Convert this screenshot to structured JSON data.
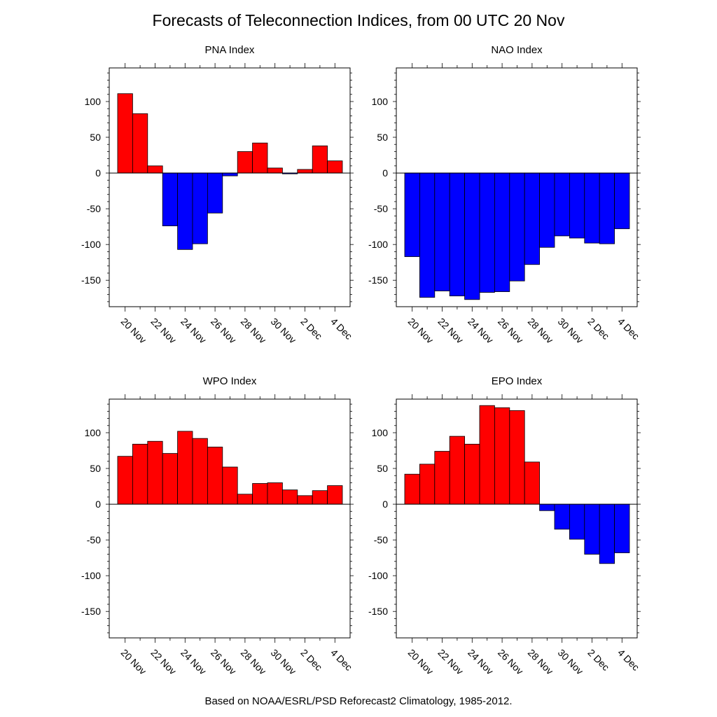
{
  "title": "Forecasts of Teleconnection Indices, from 00 UTC 20 Nov",
  "footer": "Based on NOAA/ESRL/PSD Reforecast2 Climatology, 1985-2012.",
  "colors": {
    "positive": "#ff0000",
    "negative": "#0000ff",
    "axis": "#000000"
  },
  "chart_data": [
    {
      "type": "bar",
      "title": "PNA Index",
      "categories": [
        "20 Nov",
        "21 Nov",
        "22 Nov",
        "23 Nov",
        "24 Nov",
        "25 Nov",
        "26 Nov",
        "27 Nov",
        "28 Nov",
        "29 Nov",
        "30 Nov",
        "1 Dec",
        "2 Dec",
        "3 Dec",
        "4 Dec"
      ],
      "values": [
        111,
        83,
        10,
        -74,
        -107,
        -99,
        -56,
        -4,
        30,
        42,
        7,
        -1,
        5,
        38,
        17
      ],
      "x_tick_labels": [
        "20 Nov",
        "22 Nov",
        "24 Nov",
        "26 Nov",
        "28 Nov",
        "30 Nov",
        "2 Dec",
        "4 Dec"
      ],
      "y_ticks": [
        100,
        50,
        0,
        -50,
        -100,
        -150
      ],
      "ylim": [
        -187,
        147
      ],
      "grid": false
    },
    {
      "type": "bar",
      "title": "NAO Index",
      "categories": [
        "20 Nov",
        "21 Nov",
        "22 Nov",
        "23 Nov",
        "24 Nov",
        "25 Nov",
        "26 Nov",
        "27 Nov",
        "28 Nov",
        "29 Nov",
        "30 Nov",
        "1 Dec",
        "2 Dec",
        "3 Dec",
        "4 Dec"
      ],
      "values": [
        -117,
        -174,
        -165,
        -172,
        -177,
        -167,
        -166,
        -151,
        -128,
        -104,
        -88,
        -91,
        -98,
        -99,
        -78
      ],
      "x_tick_labels": [
        "20 Nov",
        "22 Nov",
        "24 Nov",
        "26 Nov",
        "28 Nov",
        "30 Nov",
        "2 Dec",
        "4 Dec"
      ],
      "y_ticks": [
        100,
        50,
        0,
        -50,
        -100,
        -150
      ],
      "ylim": [
        -187,
        147
      ],
      "grid": false
    },
    {
      "type": "bar",
      "title": "WPO Index",
      "categories": [
        "20 Nov",
        "21 Nov",
        "22 Nov",
        "23 Nov",
        "24 Nov",
        "25 Nov",
        "26 Nov",
        "27 Nov",
        "28 Nov",
        "29 Nov",
        "30 Nov",
        "1 Dec",
        "2 Dec",
        "3 Dec",
        "4 Dec"
      ],
      "values": [
        67,
        84,
        88,
        71,
        102,
        92,
        80,
        52,
        14,
        29,
        30,
        20,
        12,
        19,
        26
      ],
      "x_tick_labels": [
        "20 Nov",
        "22 Nov",
        "24 Nov",
        "26 Nov",
        "28 Nov",
        "30 Nov",
        "2 Dec",
        "4 Dec"
      ],
      "y_ticks": [
        100,
        50,
        0,
        -50,
        -100,
        -150
      ],
      "ylim": [
        -187,
        147
      ],
      "grid": false
    },
    {
      "type": "bar",
      "title": "EPO Index",
      "categories": [
        "20 Nov",
        "21 Nov",
        "22 Nov",
        "23 Nov",
        "24 Nov",
        "25 Nov",
        "26 Nov",
        "27 Nov",
        "28 Nov",
        "29 Nov",
        "30 Nov",
        "1 Dec",
        "2 Dec",
        "3 Dec",
        "4 Dec"
      ],
      "values": [
        42,
        56,
        74,
        95,
        84,
        138,
        135,
        131,
        59,
        -9,
        -35,
        -49,
        -70,
        -83,
        -68
      ],
      "x_tick_labels": [
        "20 Nov",
        "22 Nov",
        "24 Nov",
        "26 Nov",
        "28 Nov",
        "30 Nov",
        "2 Dec",
        "4 Dec"
      ],
      "y_ticks": [
        100,
        50,
        0,
        -50,
        -100,
        -150
      ],
      "ylim": [
        -187,
        147
      ],
      "grid": false
    }
  ]
}
